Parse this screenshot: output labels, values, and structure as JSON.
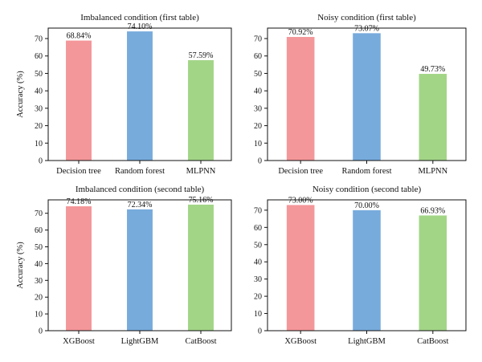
{
  "colors": {
    "red": "#f4979a",
    "blue": "#77abdc",
    "green": "#a3d587",
    "axis": "#111111"
  },
  "chart_data": [
    {
      "type": "bar",
      "title": "Imbalanced condition (first table)",
      "ylabel": "Accuracy (%)",
      "categories": [
        "Decision tree",
        "Random forest",
        "MLPNN"
      ],
      "values": [
        68.84,
        74.1,
        57.59
      ],
      "labels": [
        "68.84%",
        "74.10%",
        "57.59%"
      ],
      "yticks": [
        "0",
        "10",
        "20",
        "30",
        "40",
        "50",
        "60",
        "70"
      ],
      "ylim": [
        0,
        76
      ],
      "bar_colors": [
        "#f4979a",
        "#77abdc",
        "#a3d587"
      ]
    },
    {
      "type": "bar",
      "title": "Noisy condition (first table)",
      "ylabel": "",
      "categories": [
        "Decision tree",
        "Random forest",
        "MLPNN"
      ],
      "values": [
        70.92,
        73.07,
        49.73
      ],
      "labels": [
        "70.92%",
        "73.07%",
        "49.73%"
      ],
      "yticks": [
        "0",
        "10",
        "20",
        "30",
        "40",
        "50",
        "60",
        "70"
      ],
      "ylim": [
        0,
        76
      ],
      "bar_colors": [
        "#f4979a",
        "#77abdc",
        "#a3d587"
      ]
    },
    {
      "type": "bar",
      "title": "Imbalanced condition (second table)",
      "ylabel": "Accuracy (%)",
      "categories": [
        "XGBoost",
        "LightGBM",
        "CatBoost"
      ],
      "values": [
        74.18,
        72.34,
        75.16
      ],
      "labels": [
        "74.18%",
        "72.34%",
        "75.16%"
      ],
      "yticks": [
        "0",
        "10",
        "20",
        "30",
        "40",
        "50",
        "60",
        "70"
      ],
      "ylim": [
        0,
        78
      ],
      "bar_colors": [
        "#f4979a",
        "#77abdc",
        "#a3d587"
      ]
    },
    {
      "type": "bar",
      "title": "Noisy condition (second table)",
      "ylabel": "",
      "categories": [
        "XGBoost",
        "LightGBM",
        "CatBoost"
      ],
      "values": [
        73.0,
        70.0,
        66.93
      ],
      "labels": [
        "73.00%",
        "70.00%",
        "66.93%"
      ],
      "yticks": [
        "0",
        "10",
        "20",
        "30",
        "40",
        "50",
        "60",
        "70"
      ],
      "ylim": [
        0,
        76
      ],
      "bar_colors": [
        "#f4979a",
        "#77abdc",
        "#a3d587"
      ]
    }
  ]
}
